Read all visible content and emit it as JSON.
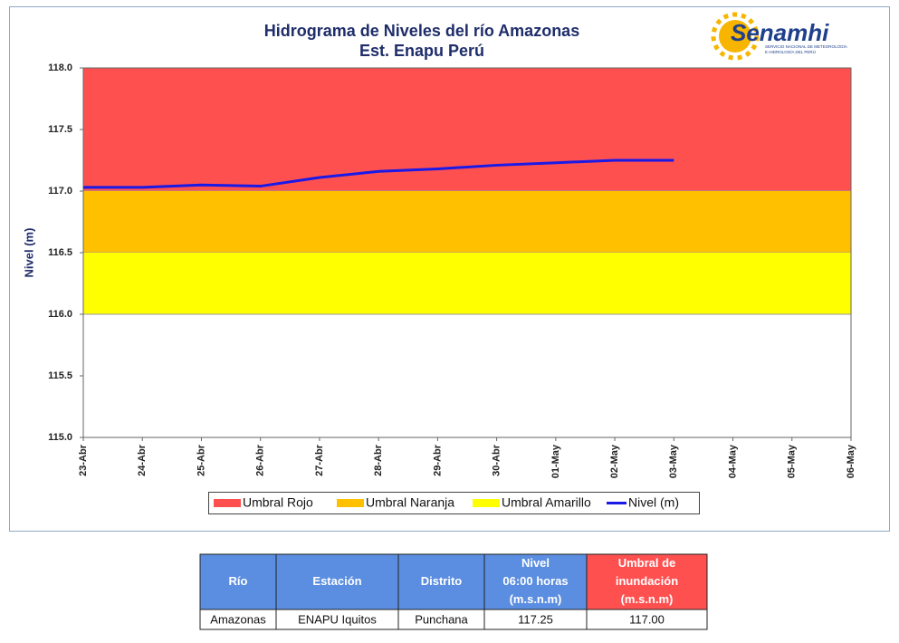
{
  "chart_data": {
    "type": "line",
    "title": [
      "Hidrograma de Niveles del río Amazonas",
      "Est. Enapu Perú"
    ],
    "logo": {
      "name": "Senamhi",
      "tagline": [
        "SERVICIO NACIONAL DE METEOROLOGÍA",
        "E HIDROLOGÍA DEL PERÚ"
      ]
    },
    "ylabel": "Nivel (m)",
    "categories": [
      "23-Abr",
      "24-Abr",
      "25-Abr",
      "26-Abr",
      "27-Abr",
      "28-Abr",
      "29-Abr",
      "30-Abr",
      "01-May",
      "02-May",
      "03-May",
      "04-May",
      "05-May",
      "06-May"
    ],
    "bands": [
      {
        "name": "Umbral Rojo",
        "color": "#ff5050",
        "from": 117,
        "to": 118
      },
      {
        "name": "Umbral Naranja",
        "color": "#ffc000",
        "from": 116.5,
        "to": 117
      },
      {
        "name": "Umbral Amarillo",
        "color": "#ffff00",
        "from": 116,
        "to": 116.5
      }
    ],
    "series": [
      {
        "name": "Nivel (m)",
        "color": "#1a1ae6",
        "values": [
          117.03,
          117.03,
          117.05,
          117.04,
          117.11,
          117.16,
          117.18,
          117.21,
          117.23,
          117.25,
          117.25,
          null,
          null,
          null
        ]
      }
    ],
    "ylim": [
      115,
      118
    ],
    "yticks": [
      {
        "value": 115,
        "label": "115.0"
      },
      115.5,
      {
        "value": 116,
        "label": "116.0"
      },
      116.5,
      {
        "value": 117,
        "label": "117.0"
      },
      117.5,
      {
        "value": 118,
        "label": "118.0"
      }
    ]
  },
  "table": {
    "header": [
      [
        "Río"
      ],
      [
        "Estación"
      ],
      [
        "Distrito"
      ],
      [
        "Nivel",
        "06:00 horas",
        "(m.s.n.m)"
      ],
      [
        "Umbral de",
        "inundación",
        "(m.s.n.m)"
      ]
    ],
    "rows": [
      [
        "Amazonas",
        "ENAPU Iquitos",
        "Punchana",
        "117.25",
        "117.00"
      ]
    ]
  }
}
